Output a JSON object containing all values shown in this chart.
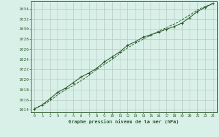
{
  "title": "Graphe pression niveau de la mer (hPa)",
  "background_color": "#d8f0e8",
  "plot_bg_color": "#d8f0e8",
  "line_color": "#2d5a2d",
  "line2_color": "#2d5a2d",
  "x_values": [
    0,
    1,
    2,
    3,
    4,
    5,
    6,
    7,
    8,
    9,
    10,
    11,
    12,
    13,
    14,
    15,
    16,
    17,
    18,
    19,
    20,
    21,
    22,
    23
  ],
  "line1_y": [
    1014.2,
    1015.0,
    1016.2,
    1017.5,
    1018.3,
    1019.4,
    1020.5,
    1021.3,
    1022.2,
    1023.5,
    1024.5,
    1025.5,
    1026.8,
    1027.5,
    1028.4,
    1028.9,
    1029.4,
    1030.0,
    1030.5,
    1031.2,
    1032.3,
    1033.5,
    1034.3,
    1035.1
  ],
  "line2_y": [
    1014.2,
    1014.9,
    1015.8,
    1017.0,
    1018.0,
    1018.8,
    1019.8,
    1020.8,
    1022.0,
    1023.0,
    1024.0,
    1025.2,
    1026.3,
    1027.2,
    1028.0,
    1028.8,
    1029.6,
    1030.3,
    1031.0,
    1031.8,
    1032.8,
    1033.8,
    1034.5,
    1035.1
  ],
  "ylim": [
    1013.5,
    1035.5
  ],
  "xlim": [
    -0.5,
    23.5
  ],
  "yticks": [
    1014,
    1016,
    1018,
    1020,
    1022,
    1024,
    1026,
    1028,
    1030,
    1032,
    1034
  ],
  "xticks": [
    0,
    1,
    2,
    3,
    4,
    5,
    6,
    7,
    8,
    9,
    10,
    11,
    12,
    13,
    14,
    15,
    16,
    17,
    18,
    19,
    20,
    21,
    22,
    23
  ],
  "grid_color": "#b8c8c0",
  "tick_color": "#2d5a2d",
  "title_color": "#2d5a2d",
  "spine_color": "#2d5a2d"
}
